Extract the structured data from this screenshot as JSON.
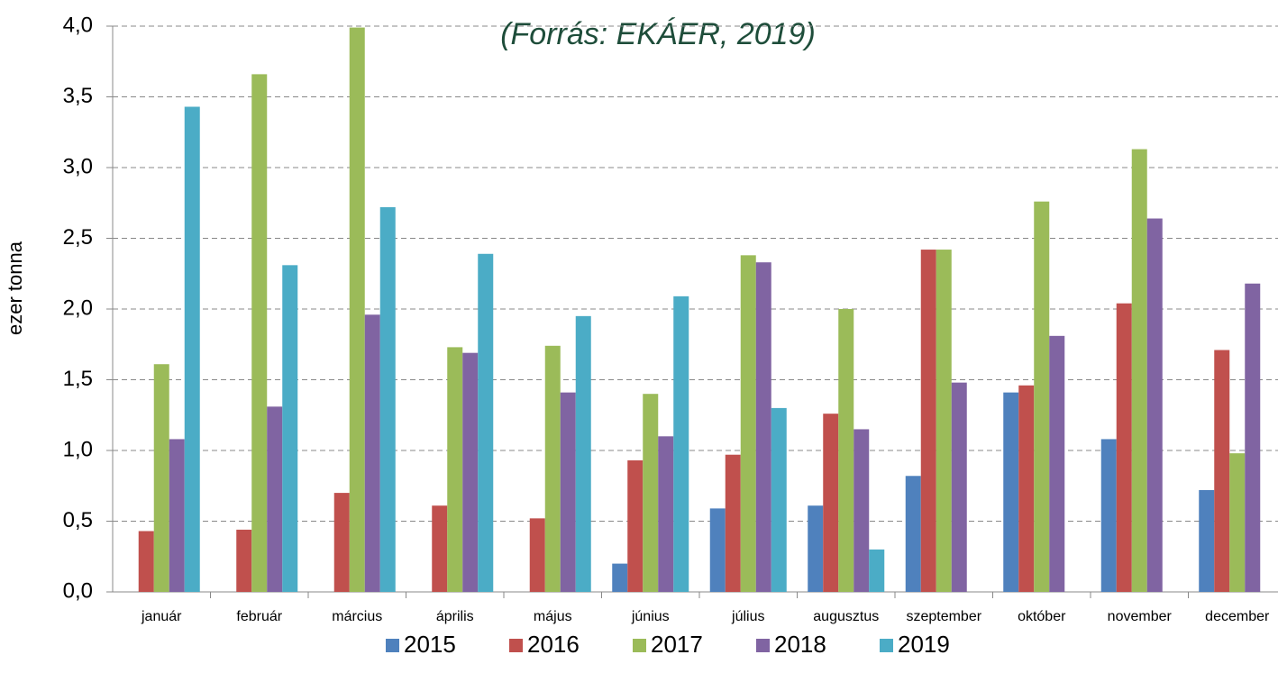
{
  "chart_data": {
    "type": "bar",
    "title": "(Forrás: EKÁER, 2019)",
    "ylabel": "ezer tonna",
    "categories": [
      "január",
      "február",
      "március",
      "április",
      "május",
      "június",
      "július",
      "augusztus",
      "szeptember",
      "október",
      "november",
      "december"
    ],
    "series": [
      {
        "name": "2015",
        "color": "#4f81bd",
        "values": [
          null,
          null,
          null,
          null,
          null,
          0.2,
          0.59,
          0.61,
          0.82,
          1.41,
          1.08,
          0.72
        ]
      },
      {
        "name": "2016",
        "color": "#c0504d",
        "values": [
          0.43,
          0.44,
          0.7,
          0.61,
          0.52,
          0.93,
          0.97,
          1.26,
          2.42,
          1.46,
          2.04,
          1.71
        ]
      },
      {
        "name": "2017",
        "color": "#9bbb59",
        "values": [
          1.61,
          3.66,
          3.99,
          1.73,
          1.74,
          1.4,
          2.38,
          2.0,
          2.42,
          2.76,
          3.13,
          0.98
        ]
      },
      {
        "name": "2018",
        "color": "#8064a2",
        "values": [
          1.08,
          1.31,
          1.96,
          1.69,
          1.41,
          1.1,
          2.33,
          1.15,
          1.48,
          1.81,
          2.64,
          2.18
        ]
      },
      {
        "name": "2019",
        "color": "#4bacc6",
        "values": [
          3.43,
          2.31,
          2.72,
          2.39,
          1.95,
          2.09,
          1.3,
          0.3,
          null,
          null,
          null,
          null
        ]
      }
    ],
    "ylim": [
      0,
      4
    ],
    "yticks": [
      {
        "value": 0,
        "label": "0,0"
      },
      {
        "value": 0.5,
        "label": "0,5"
      },
      {
        "value": 1,
        "label": "1,0"
      },
      {
        "value": 1.5,
        "label": "1,5"
      },
      {
        "value": 2,
        "label": "2,0"
      },
      {
        "value": 2.5,
        "label": "2,5"
      },
      {
        "value": 3,
        "label": "3,0"
      },
      {
        "value": 3.5,
        "label": "3,5"
      },
      {
        "value": 4,
        "label": "4,0"
      }
    ],
    "grid": true,
    "legend": "bottom"
  }
}
